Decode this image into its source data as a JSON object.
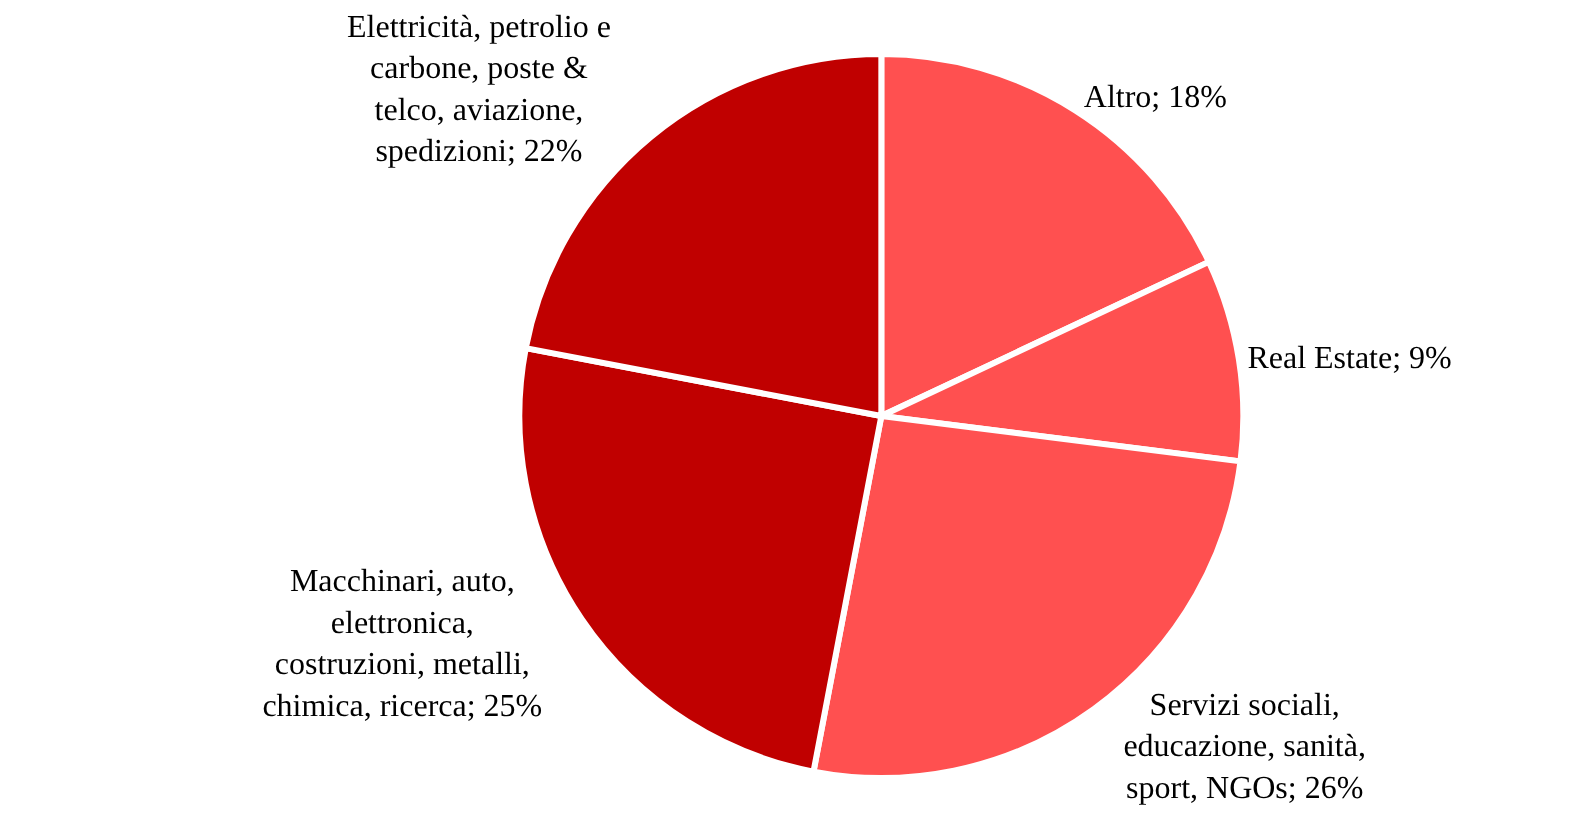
{
  "chart_data": {
    "type": "pie",
    "categories": [
      "Altro",
      "Real Estate",
      "Servizi sociali,\neducazione, sanità,\nsport, NGOs",
      "Macchinari, auto,\nelettronica,\ncostruzioni, metalli,\nchimica, ricerca",
      "Elettricità, petrolio e\ncarbone, poste &\ntelco, aviazione,\nspedizioni"
    ],
    "values": [
      18,
      9,
      26,
      25,
      22
    ],
    "value_labels": [
      "18%",
      "9%",
      "26%",
      "25%",
      "22%"
    ],
    "colors": [
      "#ff5050",
      "#ff5050",
      "#ff5050",
      "#c00000",
      "#c00000"
    ],
    "legend": false
  }
}
